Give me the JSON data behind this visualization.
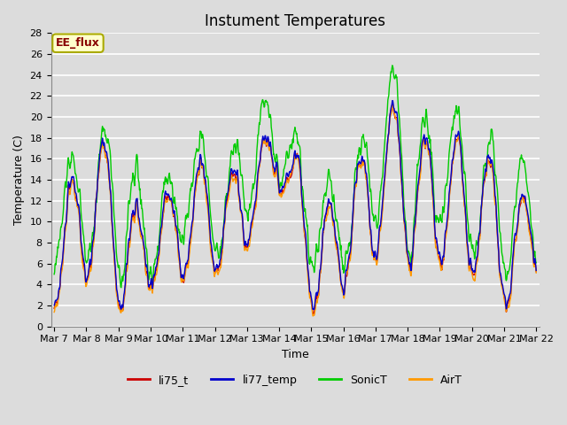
{
  "title": "Instument Temperatures",
  "xlabel": "Time",
  "ylabel": "Temperature (C)",
  "ylim": [
    0,
    28
  ],
  "bg_color": "#dcdcdc",
  "plot_bg_color": "#dcdcdc",
  "grid_color": "#ffffff",
  "series_colors": {
    "li75_t": "#cc0000",
    "li77_temp": "#0000cc",
    "SonicT": "#00cc00",
    "AirT": "#ff9900"
  },
  "legend_box_facecolor": "#ffffcc",
  "legend_box_edgecolor": "#aaaa00",
  "annotation_text": "EE_flux",
  "annotation_color": "#880000",
  "tick_labels": [
    "Mar 7",
    "Mar 8",
    "Mar 9",
    "Mar 10",
    "Mar 11",
    "Mar 12",
    "Mar 13",
    "Mar 14",
    "Mar 15",
    "Mar 16",
    "Mar 17",
    "Mar 18",
    "Mar 19",
    "Mar 20",
    "Mar 21",
    "Mar 22"
  ],
  "title_fontsize": 12,
  "label_fontsize": 9,
  "tick_fontsize": 8,
  "linewidth": 1.0
}
